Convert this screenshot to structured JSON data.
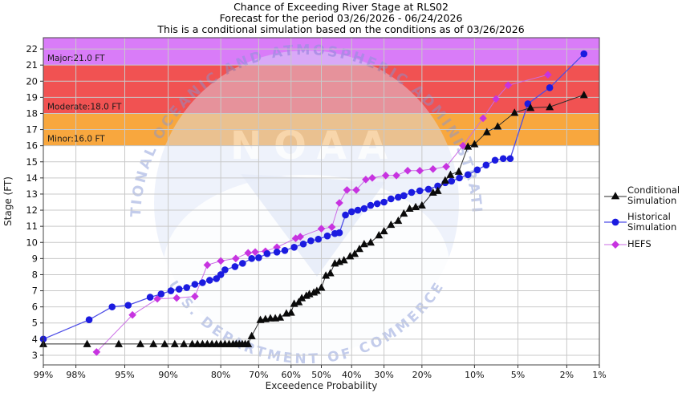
{
  "title": {
    "line1": "Chance of Exceeding River Stage at RLS02",
    "line2": "Forecast for the period 03/26/2026 - 06/24/2026",
    "line3": "This is a conditional simulation based on the conditions as of 03/26/2026"
  },
  "watermark": {
    "top_text": "NATIONAL OCEANIC AND ATMOSPHERIC ADMINISTRATION",
    "bottom_text": "U.S. DEPARTMENT OF COMMERCE",
    "acronym": "NOAA",
    "circle_color": "#d9e1f6",
    "text_color": "#8296d6"
  },
  "chart_data": {
    "type": "line",
    "title": "Chance of Exceeding River Stage at RLS02",
    "xlabel": "Exceedence Probability",
    "ylabel": "Stage (FT)",
    "x_scale": "probit-reversed",
    "x_tick_values": [
      99,
      98,
      95,
      90,
      80,
      70,
      60,
      50,
      40,
      30,
      20,
      10,
      5,
      2,
      1
    ],
    "x_tick_labels": [
      "99%",
      "98%",
      "95%",
      "90%",
      "80%",
      "70%",
      "60%",
      "50%",
      "40%",
      "30%",
      "20%",
      "10%",
      "5%",
      "2%",
      "1%"
    ],
    "y_ticks": [
      3,
      4,
      5,
      6,
      7,
      8,
      9,
      10,
      11,
      12,
      13,
      14,
      15,
      16,
      17,
      18,
      19,
      20,
      21,
      22
    ],
    "y_range": [
      2.4,
      22.7
    ],
    "grid_color": "#c9c9c9",
    "flood_bands": [
      {
        "name": "Minor",
        "label": "Minor:16.0 FT",
        "from": 16,
        "to": 18,
        "color": "#F8A73E"
      },
      {
        "name": "Moderate",
        "label": "Moderate:18.0 FT",
        "from": 18,
        "to": 21,
        "color": "#F15252"
      },
      {
        "name": "Major",
        "label": "Major:21.0 FT",
        "from": 21,
        "to": 22.7,
        "color": "#D97CF8"
      }
    ],
    "legend": {
      "position": "right"
    },
    "series": [
      {
        "name": "Conditional Simulation",
        "marker": "triangle",
        "marker_color": "#0a0a0a",
        "line_color": "#2a2a2a",
        "points": [
          [
            99,
            3.7
          ],
          [
            97.5,
            3.7
          ],
          [
            95.5,
            3.7
          ],
          [
            93.5,
            3.7
          ],
          [
            92,
            3.7
          ],
          [
            90.5,
            3.7
          ],
          [
            89,
            3.7
          ],
          [
            87.5,
            3.7
          ],
          [
            86,
            3.7
          ],
          [
            85,
            3.7
          ],
          [
            84,
            3.7
          ],
          [
            83,
            3.7
          ],
          [
            82,
            3.7
          ],
          [
            81,
            3.7
          ],
          [
            80,
            3.7
          ],
          [
            79,
            3.7
          ],
          [
            78,
            3.7
          ],
          [
            77,
            3.7
          ],
          [
            76.2,
            3.7
          ],
          [
            75.4,
            3.7
          ],
          [
            74.6,
            3.7
          ],
          [
            73.8,
            3.7
          ],
          [
            73,
            3.7
          ],
          [
            72,
            4.2
          ],
          [
            69.5,
            5.2
          ],
          [
            68,
            5.25
          ],
          [
            66.5,
            5.3
          ],
          [
            65,
            5.3
          ],
          [
            63.5,
            5.35
          ],
          [
            61.5,
            5.6
          ],
          [
            60,
            5.65
          ],
          [
            59,
            6.2
          ],
          [
            57.5,
            6.3
          ],
          [
            56.5,
            6.55
          ],
          [
            55,
            6.7
          ],
          [
            54,
            6.8
          ],
          [
            52.5,
            6.9
          ],
          [
            51.5,
            7.0
          ],
          [
            50,
            7.2
          ],
          [
            48.5,
            7.95
          ],
          [
            47,
            8.1
          ],
          [
            45.5,
            8.7
          ],
          [
            44,
            8.8
          ],
          [
            42.5,
            8.9
          ],
          [
            40.5,
            9.15
          ],
          [
            39,
            9.3
          ],
          [
            37.5,
            9.6
          ],
          [
            36,
            9.9
          ],
          [
            34,
            10.0
          ],
          [
            31.5,
            10.45
          ],
          [
            30,
            10.7
          ],
          [
            28,
            11.1
          ],
          [
            26,
            11.35
          ],
          [
            24.5,
            11.8
          ],
          [
            23,
            12.1
          ],
          [
            21.5,
            12.2
          ],
          [
            20,
            12.3
          ],
          [
            17.5,
            13.1
          ],
          [
            16.5,
            13.2
          ],
          [
            15,
            13.85
          ],
          [
            14,
            14.2
          ],
          [
            12.5,
            14.4
          ],
          [
            11,
            15.95
          ],
          [
            10,
            16.1
          ],
          [
            8.3,
            16.85
          ],
          [
            7,
            17.2
          ],
          [
            5.3,
            18.05
          ],
          [
            4,
            18.35
          ],
          [
            2.8,
            18.4
          ],
          [
            1.4,
            19.15
          ]
        ]
      },
      {
        "name": "Historical Simulation",
        "marker": "circle",
        "marker_color": "#1b1be0",
        "line_color": "#4d4de6",
        "points": [
          [
            99,
            4.0
          ],
          [
            97.4,
            5.2
          ],
          [
            96,
            6.0
          ],
          [
            94.7,
            6.1
          ],
          [
            92.4,
            6.6
          ],
          [
            91,
            6.8
          ],
          [
            89.6,
            7.0
          ],
          [
            88.3,
            7.1
          ],
          [
            87,
            7.2
          ],
          [
            85.5,
            7.4
          ],
          [
            84,
            7.5
          ],
          [
            82.5,
            7.65
          ],
          [
            81,
            7.75
          ],
          [
            80,
            8.0
          ],
          [
            79,
            8.3
          ],
          [
            76.5,
            8.5
          ],
          [
            74.5,
            8.7
          ],
          [
            72,
            9.0
          ],
          [
            70,
            9.05
          ],
          [
            67.5,
            9.3
          ],
          [
            64.5,
            9.4
          ],
          [
            62,
            9.5
          ],
          [
            59,
            9.7
          ],
          [
            56,
            9.9
          ],
          [
            53.5,
            10.1
          ],
          [
            51,
            10.2
          ],
          [
            48,
            10.4
          ],
          [
            45.5,
            10.55
          ],
          [
            44,
            10.6
          ],
          [
            42,
            11.7
          ],
          [
            40,
            11.9
          ],
          [
            38,
            12.0
          ],
          [
            36,
            12.1
          ],
          [
            34,
            12.3
          ],
          [
            32,
            12.4
          ],
          [
            30,
            12.5
          ],
          [
            28,
            12.7
          ],
          [
            26,
            12.8
          ],
          [
            24.5,
            12.9
          ],
          [
            22.5,
            13.1
          ],
          [
            20.5,
            13.2
          ],
          [
            18.5,
            13.3
          ],
          [
            16.5,
            13.5
          ],
          [
            15,
            13.7
          ],
          [
            13.8,
            13.8
          ],
          [
            12.4,
            14.0
          ],
          [
            11,
            14.2
          ],
          [
            9.6,
            14.5
          ],
          [
            8.4,
            14.8
          ],
          [
            7.3,
            15.1
          ],
          [
            6.4,
            15.2
          ],
          [
            5.7,
            15.2
          ],
          [
            4.2,
            18.6
          ],
          [
            2.8,
            19.6
          ],
          [
            1.4,
            21.7
          ]
        ]
      },
      {
        "name": "HEFS",
        "marker": "diamond",
        "marker_color": "#c733e0",
        "line_color": "#cb6ce6",
        "points": [
          [
            97,
            3.2
          ],
          [
            94.3,
            5.5
          ],
          [
            91.5,
            6.5
          ],
          [
            88.7,
            6.55
          ],
          [
            85.5,
            6.65
          ],
          [
            83,
            8.6
          ],
          [
            80,
            8.85
          ],
          [
            76.3,
            9.0
          ],
          [
            73,
            9.35
          ],
          [
            71,
            9.4
          ],
          [
            68,
            9.45
          ],
          [
            64.5,
            9.7
          ],
          [
            58.5,
            10.25
          ],
          [
            57,
            10.35
          ],
          [
            50,
            10.85
          ],
          [
            46.5,
            10.95
          ],
          [
            44,
            12.45
          ],
          [
            41.5,
            13.25
          ],
          [
            38.5,
            13.25
          ],
          [
            35.5,
            13.9
          ],
          [
            33.5,
            14.0
          ],
          [
            29.5,
            14.15
          ],
          [
            26.5,
            14.15
          ],
          [
            23.5,
            14.45
          ],
          [
            20.5,
            14.45
          ],
          [
            17.5,
            14.55
          ],
          [
            14.8,
            14.7
          ],
          [
            11.8,
            16.0
          ],
          [
            8.8,
            17.7
          ],
          [
            7.2,
            18.9
          ],
          [
            5.9,
            19.75
          ],
          [
            2.9,
            20.4
          ]
        ]
      }
    ]
  }
}
